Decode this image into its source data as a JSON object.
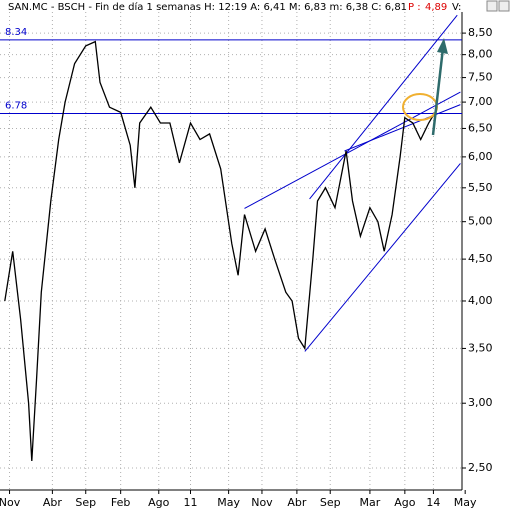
{
  "chart_data": {
    "type": "line",
    "header": "SAN.MC - BSCH - Fin de día 1 semanas  H: 12:19  A: 6,41  M: 6,83  m: 6,38  C: 6,81",
    "header_extra_label": "P :",
    "header_extra_value": "4,89",
    "header_tail": "V:",
    "log_scale": true,
    "grid": true,
    "series": [
      {
        "color": "#000000",
        "x": [
          3,
          8,
          13,
          18,
          20,
          23,
          26,
          32,
          37,
          41,
          47,
          54,
          60,
          63,
          69,
          76,
          82,
          85,
          88,
          95,
          101,
          107,
          113,
          120,
          126,
          132,
          139,
          146,
          150,
          154,
          161,
          167,
          173,
          180,
          184,
          188,
          192,
          197,
          200,
          205,
          211,
          218,
          222,
          227,
          233,
          238,
          242,
          247,
          252,
          255,
          260,
          265,
          270,
          274
        ],
        "values": [
          4.0,
          4.6,
          3.8,
          3.0,
          2.55,
          3.2,
          4.1,
          5.3,
          6.3,
          7.0,
          7.8,
          8.2,
          8.3,
          7.4,
          6.9,
          6.8,
          6.2,
          5.5,
          6.6,
          6.9,
          6.6,
          6.6,
          5.9,
          6.6,
          6.3,
          6.4,
          5.8,
          4.7,
          4.3,
          5.1,
          4.6,
          4.9,
          4.5,
          4.1,
          4.0,
          3.6,
          3.5,
          4.5,
          5.3,
          5.5,
          5.2,
          6.1,
          5.3,
          4.8,
          5.2,
          5.0,
          4.6,
          5.1,
          6.0,
          6.7,
          6.6,
          6.3,
          6.6,
          6.8
        ]
      }
    ],
    "hlines": [
      {
        "value": 8.34,
        "label": "8.34",
        "color": "#0000cc"
      },
      {
        "value": 6.78,
        "label": "6.78",
        "color": "#0000cc"
      }
    ],
    "trendlines": [
      {
        "x": [
          154,
          290
        ],
        "y": [
          5.19,
          7.2
        ],
        "color": "#0000cc"
      },
      {
        "x": [
          192,
          290
        ],
        "y": [
          3.47,
          5.89
        ],
        "color": "#0000cc"
      },
      {
        "x": [
          195,
          288
        ],
        "y": [
          5.33,
          8.94
        ],
        "color": "#0000cc"
      },
      {
        "x": [
          217,
          290
        ],
        "y": [
          6.1,
          6.95
        ],
        "color": "#0000cc"
      }
    ],
    "xlim": [
      0,
      291
    ],
    "xticks": [
      {
        "value": 6,
        "label": "Nov"
      },
      {
        "value": 33,
        "label": "Abr"
      },
      {
        "value": 54,
        "label": "Sep"
      },
      {
        "value": 76,
        "label": "Feb"
      },
      {
        "value": 100,
        "label": "Ago"
      },
      {
        "value": 120,
        "label": "11"
      },
      {
        "value": 144,
        "label": "May"
      },
      {
        "value": 165,
        "label": "Nov"
      },
      {
        "value": 187,
        "label": "Abr"
      },
      {
        "value": 208,
        "label": "Sep"
      },
      {
        "value": 233,
        "label": "Mar"
      },
      {
        "value": 255,
        "label": "Ago"
      },
      {
        "value": 273,
        "label": "14"
      },
      {
        "value": 293,
        "label": "May"
      }
    ],
    "ylim": [
      2.35,
      9.02
    ],
    "yticks": [
      {
        "value": 8.5,
        "label": "8,50"
      },
      {
        "value": 8,
        "label": "8,00"
      },
      {
        "value": 7.5,
        "label": "7,50"
      },
      {
        "value": 7,
        "label": "7,00"
      },
      {
        "value": 6.5,
        "label": "6,50"
      },
      {
        "value": 6,
        "label": "6,00"
      },
      {
        "value": 5.5,
        "label": "5,50"
      },
      {
        "value": 5,
        "label": "5,00"
      },
      {
        "value": 4.5,
        "label": "4,50"
      },
      {
        "value": 4,
        "label": "4,00"
      },
      {
        "value": 3.5,
        "label": "3,50"
      },
      {
        "value": 3,
        "label": "3,00"
      },
      {
        "value": 2.5,
        "label": "2,50"
      }
    ]
  }
}
